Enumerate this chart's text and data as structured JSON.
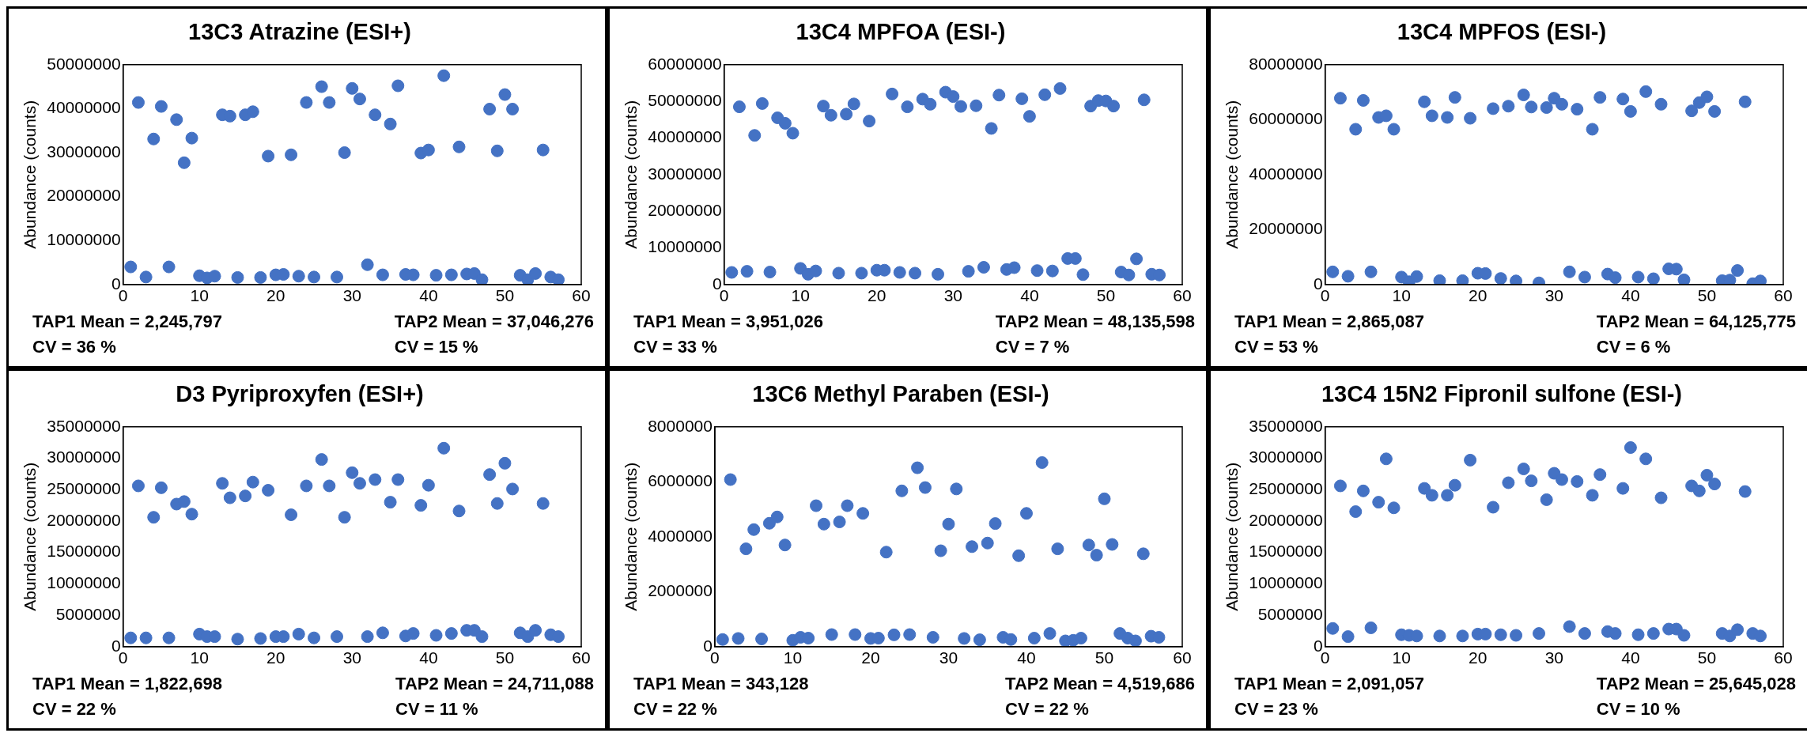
{
  "chart_data": [
    {
      "type": "scatter",
      "title": "13C3 Atrazine (ESI+)",
      "ylabel": "Abundance (counts)",
      "color": "#4472c4",
      "marker": "circle",
      "x": [
        1,
        2,
        3,
        4,
        5,
        6,
        7,
        8,
        9,
        10,
        11,
        12,
        13,
        14,
        15,
        16,
        17,
        18,
        19,
        20,
        21,
        22,
        23,
        24,
        25,
        26,
        27,
        28,
        29,
        30,
        31,
        32,
        33,
        34,
        35,
        36,
        37,
        38,
        39,
        40,
        41,
        42,
        43,
        44,
        45,
        46,
        47,
        48,
        49,
        50,
        51,
        52,
        53,
        54,
        55,
        56,
        57
      ],
      "values": [
        4000000,
        41400000,
        1700000,
        33100000,
        40500000,
        4000000,
        37500000,
        27700000,
        33300000,
        2000000,
        1500000,
        1900000,
        38600000,
        38300000,
        1600000,
        38600000,
        39300000,
        1600000,
        29200000,
        2200000,
        2300000,
        29500000,
        1900000,
        41400000,
        1700000,
        45000000,
        41400000,
        1700000,
        30000000,
        44600000,
        42200000,
        4500000,
        38600000,
        2200000,
        36500000,
        45200000,
        2300000,
        2200000,
        29900000,
        30600000,
        2100000,
        47500000,
        2200000,
        31300000,
        2400000,
        2500000,
        1100000,
        39900000,
        30400000,
        43200000,
        39900000,
        2100000,
        1100000,
        2500000,
        30600000,
        1700000,
        1100000
      ],
      "xlim": [
        0,
        60
      ],
      "xticks": [
        0,
        10,
        20,
        30,
        40,
        50,
        60
      ],
      "ylim": [
        0,
        50000000
      ],
      "yticks": [
        0,
        10000000,
        20000000,
        30000000,
        40000000,
        50000000
      ],
      "annotations": [
        "TAP1 Mean = 2,245,797",
        "CV = 36 %",
        "TAP2 Mean = 37,046,276",
        "CV = 15 %"
      ]
    },
    {
      "type": "scatter",
      "title": "13C4 MPFOA (ESI-)",
      "ylabel": "Abundance (counts)",
      "color": "#4472c4",
      "marker": "circle",
      "x": [
        1,
        2,
        3,
        4,
        5,
        6,
        7,
        8,
        9,
        10,
        11,
        12,
        13,
        14,
        15,
        16,
        17,
        18,
        19,
        20,
        21,
        22,
        23,
        24,
        25,
        26,
        27,
        28,
        29,
        30,
        31,
        32,
        33,
        34,
        35,
        36,
        37,
        38,
        39,
        40,
        41,
        42,
        43,
        44,
        45,
        46,
        47,
        48,
        49,
        50,
        51,
        52,
        53,
        54,
        55,
        56,
        57
      ],
      "values": [
        3300000,
        48500000,
        3600000,
        40700000,
        49400000,
        3400000,
        45500000,
        44000000,
        41300000,
        4400000,
        2800000,
        3700000,
        48700000,
        46200000,
        3100000,
        46500000,
        49300000,
        3100000,
        44600000,
        3900000,
        3900000,
        52000000,
        3300000,
        48500000,
        3100000,
        50600000,
        49200000,
        2800000,
        52500000,
        51300000,
        48600000,
        3600000,
        48800000,
        4700000,
        42600000,
        51700000,
        4100000,
        4600000,
        50700000,
        45900000,
        3800000,
        51800000,
        3700000,
        53500000,
        7100000,
        7100000,
        2700000,
        48700000,
        50200000,
        50100000,
        48700000,
        3400000,
        2600000,
        7000000,
        50400000,
        2800000,
        2600000
      ],
      "xlim": [
        0,
        60
      ],
      "xticks": [
        0,
        10,
        20,
        30,
        40,
        50,
        60
      ],
      "ylim": [
        0,
        60000000
      ],
      "yticks": [
        0,
        10000000,
        20000000,
        30000000,
        40000000,
        50000000,
        60000000
      ],
      "annotations": [
        "TAP1 Mean = 3,951,026",
        "CV = 33 %",
        "TAP2 Mean = 48,135,598",
        "CV = 7 %"
      ]
    },
    {
      "type": "scatter",
      "title": "13C4 MPFOS (ESI-)",
      "ylabel": "Abundance (counts)",
      "color": "#4472c4",
      "marker": "circle",
      "x": [
        1,
        2,
        3,
        4,
        5,
        6,
        7,
        8,
        9,
        10,
        11,
        12,
        13,
        14,
        15,
        16,
        17,
        18,
        19,
        20,
        21,
        22,
        23,
        24,
        25,
        26,
        27,
        28,
        29,
        30,
        31,
        32,
        33,
        34,
        35,
        36,
        37,
        38,
        39,
        40,
        41,
        42,
        43,
        44,
        45,
        46,
        47,
        48,
        49,
        50,
        51,
        52,
        53,
        54,
        55,
        56,
        57
      ],
      "values": [
        4600000,
        67800000,
        3000000,
        56500000,
        67000000,
        4600000,
        60800000,
        61400000,
        56500000,
        2700000,
        1000000,
        2900000,
        66500000,
        61400000,
        1400000,
        60800000,
        68100000,
        1400000,
        60500000,
        4100000,
        4000000,
        64000000,
        2200000,
        64900000,
        1300000,
        69000000,
        64600000,
        600000,
        64400000,
        67800000,
        65600000,
        4600000,
        63800000,
        2700000,
        56500000,
        68100000,
        3800000,
        2500000,
        67500000,
        63000000,
        2700000,
        70200000,
        2100000,
        65600000,
        5700000,
        5600000,
        1700000,
        63200000,
        66200000,
        68300000,
        63000000,
        1400000,
        1600000,
        5100000,
        66500000,
        300000,
        1300000
      ],
      "xlim": [
        0,
        60
      ],
      "xticks": [
        0,
        10,
        20,
        30,
        40,
        50,
        60
      ],
      "ylim": [
        0,
        80000000
      ],
      "yticks": [
        0,
        20000000,
        40000000,
        60000000,
        80000000
      ],
      "annotations": [
        "TAP1 Mean = 2,865,087",
        "CV = 53 %",
        "TAP2 Mean = 64,125,775",
        "CV = 6 %"
      ]
    },
    {
      "type": "scatter",
      "title": "D3 Pyriproxyfen (ESI+)",
      "ylabel": "Abundance (counts)",
      "color": "#4472c4",
      "marker": "circle",
      "x": [
        1,
        2,
        3,
        4,
        5,
        6,
        7,
        8,
        9,
        10,
        11,
        12,
        13,
        14,
        15,
        16,
        17,
        18,
        19,
        20,
        21,
        22,
        23,
        24,
        25,
        26,
        27,
        28,
        29,
        30,
        31,
        32,
        33,
        34,
        35,
        36,
        37,
        38,
        39,
        40,
        41,
        42,
        43,
        44,
        45,
        46,
        47,
        48,
        49,
        50,
        51,
        52,
        53,
        54,
        55,
        56,
        57
      ],
      "values": [
        1400000,
        25600000,
        1400000,
        20600000,
        25300000,
        1400000,
        22700000,
        23100000,
        21100000,
        2000000,
        1600000,
        1600000,
        26000000,
        23700000,
        1200000,
        24000000,
        26200000,
        1300000,
        24900000,
        1600000,
        1600000,
        21000000,
        2000000,
        25600000,
        1400000,
        29800000,
        25600000,
        1600000,
        20600000,
        27700000,
        26000000,
        1600000,
        26600000,
        2200000,
        23000000,
        26600000,
        1700000,
        2100000,
        22500000,
        25700000,
        1800000,
        31600000,
        2100000,
        21600000,
        2600000,
        2600000,
        1600000,
        27400000,
        22800000,
        29200000,
        25100000,
        2200000,
        1600000,
        2600000,
        22800000,
        1900000,
        1600000
      ],
      "xlim": [
        0,
        60
      ],
      "xticks": [
        0,
        10,
        20,
        30,
        40,
        50,
        60
      ],
      "ylim": [
        0,
        35000000
      ],
      "yticks": [
        0,
        5000000,
        10000000,
        15000000,
        20000000,
        25000000,
        30000000,
        35000000
      ],
      "annotations": [
        "TAP1 Mean = 1,822,698",
        "CV = 22 %",
        "TAP2 Mean = 24,711,088",
        "CV = 11 %"
      ]
    },
    {
      "type": "scatter",
      "title": "13C6 Methyl Paraben (ESI-)",
      "ylabel": "Abundance (counts)",
      "color": "#4472c4",
      "marker": "circle",
      "x": [
        1,
        2,
        3,
        4,
        5,
        6,
        7,
        8,
        9,
        10,
        11,
        12,
        13,
        14,
        15,
        16,
        17,
        18,
        19,
        20,
        21,
        22,
        23,
        24,
        25,
        26,
        27,
        28,
        29,
        30,
        31,
        32,
        33,
        34,
        35,
        36,
        37,
        38,
        39,
        40,
        41,
        42,
        43,
        44,
        45,
        46,
        47,
        48,
        49,
        50,
        51,
        52,
        53,
        54,
        55,
        56,
        57
      ],
      "values": [
        260000,
        6080000,
        300000,
        3560000,
        4260000,
        280000,
        4490000,
        4720000,
        3700000,
        230000,
        340000,
        310000,
        5130000,
        4460000,
        440000,
        4540000,
        5130000,
        440000,
        4850000,
        300000,
        310000,
        3440000,
        430000,
        5670000,
        440000,
        6510000,
        5790000,
        340000,
        3490000,
        4460000,
        5740000,
        300000,
        3640000,
        250000,
        3770000,
        4480000,
        340000,
        260000,
        3310000,
        4850000,
        310000,
        6700000,
        480000,
        3560000,
        210000,
        230000,
        310000,
        3700000,
        3330000,
        5380000,
        3720000,
        480000,
        310000,
        210000,
        3380000,
        380000,
        340000
      ],
      "xlim": [
        0,
        60
      ],
      "xticks": [
        0,
        10,
        20,
        30,
        40,
        50,
        60
      ],
      "ylim": [
        0,
        8000000
      ],
      "yticks": [
        0,
        2000000,
        4000000,
        6000000,
        8000000
      ],
      "annotations": [
        "TAP1 Mean = 343,128",
        "CV = 22 %",
        "TAP2 Mean = 4,519,686",
        "CV = 22 %"
      ]
    },
    {
      "type": "scatter",
      "title": "13C4 15N2 Fipronil sulfone (ESI-)",
      "ylabel": "Abundance (counts)",
      "color": "#4472c4",
      "marker": "circle",
      "x": [
        1,
        2,
        3,
        4,
        5,
        6,
        7,
        8,
        9,
        10,
        11,
        12,
        13,
        14,
        15,
        16,
        17,
        18,
        19,
        20,
        21,
        22,
        23,
        24,
        25,
        26,
        27,
        28,
        29,
        30,
        31,
        32,
        33,
        34,
        35,
        36,
        37,
        38,
        39,
        40,
        41,
        42,
        43,
        44,
        45,
        46,
        47,
        48,
        49,
        50,
        51,
        52,
        53,
        54,
        55,
        56,
        57
      ],
      "values": [
        2900000,
        25600000,
        1600000,
        21500000,
        24800000,
        3000000,
        23000000,
        29900000,
        22100000,
        1900000,
        1800000,
        1700000,
        25200000,
        24100000,
        1700000,
        24100000,
        25700000,
        1700000,
        29700000,
        2000000,
        2000000,
        22200000,
        1900000,
        26100000,
        1800000,
        28300000,
        26400000,
        2100000,
        23400000,
        27600000,
        26600000,
        3200000,
        26300000,
        2100000,
        24100000,
        27400000,
        2400000,
        2100000,
        25200000,
        31700000,
        1900000,
        29900000,
        2100000,
        23700000,
        2800000,
        2800000,
        1800000,
        25600000,
        24800000,
        27300000,
        25900000,
        2100000,
        1700000,
        2700000,
        24700000,
        2100000,
        1700000
      ],
      "xlim": [
        0,
        60
      ],
      "xticks": [
        0,
        10,
        20,
        30,
        40,
        50,
        60
      ],
      "ylim": [
        0,
        35000000
      ],
      "yticks": [
        0,
        5000000,
        10000000,
        15000000,
        20000000,
        25000000,
        30000000,
        35000000
      ],
      "annotations": [
        "TAP1 Mean = 2,091,057",
        "CV = 23 %",
        "TAP2 Mean = 25,645,028",
        "CV = 10 %"
      ]
    }
  ]
}
